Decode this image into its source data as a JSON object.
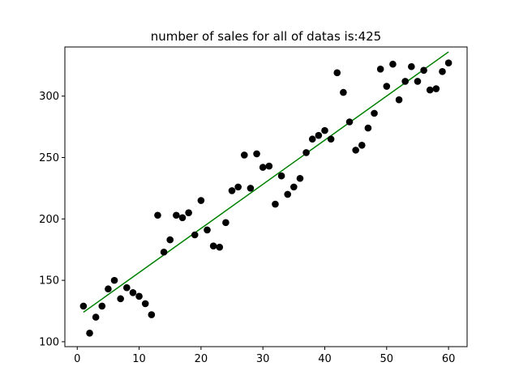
{
  "chart_data": {
    "type": "scatter",
    "title": "number of sales for all of datas is:425",
    "xlabel": "",
    "ylabel": "",
    "xlim": [
      -2,
      63
    ],
    "ylim": [
      96,
      340
    ],
    "xticks": [
      0,
      10,
      20,
      30,
      40,
      50,
      60
    ],
    "yticks": [
      100,
      150,
      200,
      250,
      300
    ],
    "grid": false,
    "series": [
      {
        "marker_color": "#000000",
        "x": [
          1,
          2,
          3,
          4,
          5,
          6,
          7,
          8,
          9,
          10,
          11,
          12,
          13,
          14,
          15,
          16,
          17,
          18,
          19,
          20,
          21,
          22,
          23,
          24,
          25,
          26,
          27,
          28,
          29,
          30,
          31,
          32,
          33,
          34,
          35,
          36,
          37,
          38,
          39,
          40,
          41,
          42,
          43,
          44,
          45,
          46,
          47,
          48,
          49,
          50,
          51,
          52,
          53,
          54,
          55,
          56,
          57,
          58,
          59,
          60
        ],
        "y": [
          129,
          107,
          120,
          129,
          143,
          150,
          135,
          144,
          140,
          137,
          131,
          122,
          203,
          173,
          183,
          203,
          201,
          205,
          187,
          215,
          191,
          178,
          177,
          197,
          223,
          226,
          252,
          225,
          253,
          242,
          243,
          212,
          235,
          220,
          226,
          233,
          254,
          265,
          268,
          272,
          265,
          319,
          303,
          279,
          256,
          260,
          274,
          286,
          322,
          308,
          326,
          297,
          312,
          324,
          312,
          321,
          305,
          306,
          320,
          327
        ]
      }
    ],
    "trendline": {
      "color": "#008000",
      "x": [
        1,
        60
      ],
      "y": [
        124,
        336
      ]
    }
  }
}
